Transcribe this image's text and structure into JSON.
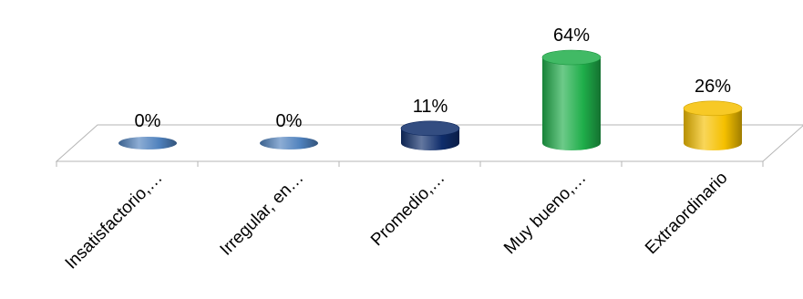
{
  "chart_data": {
    "type": "bar",
    "style": "3d-cylinder",
    "categories": [
      "Insatisfactorio,…",
      "Irregular, en…",
      "Promedio,…",
      "Muy bueno,…",
      "Extraordinario"
    ],
    "values": [
      0,
      0,
      11,
      64,
      26
    ],
    "data_labels": [
      "0%",
      "0%",
      "11%",
      "64%",
      "26%"
    ],
    "colors": [
      "#4f81bd",
      "#4f81bd",
      "#0f2d6b",
      "#1fae4a",
      "#f5c000"
    ],
    "unit": "%",
    "ylim": [
      0,
      64
    ],
    "grid": false,
    "legend": "none",
    "title": "",
    "xlabel": "",
    "ylabel": ""
  }
}
